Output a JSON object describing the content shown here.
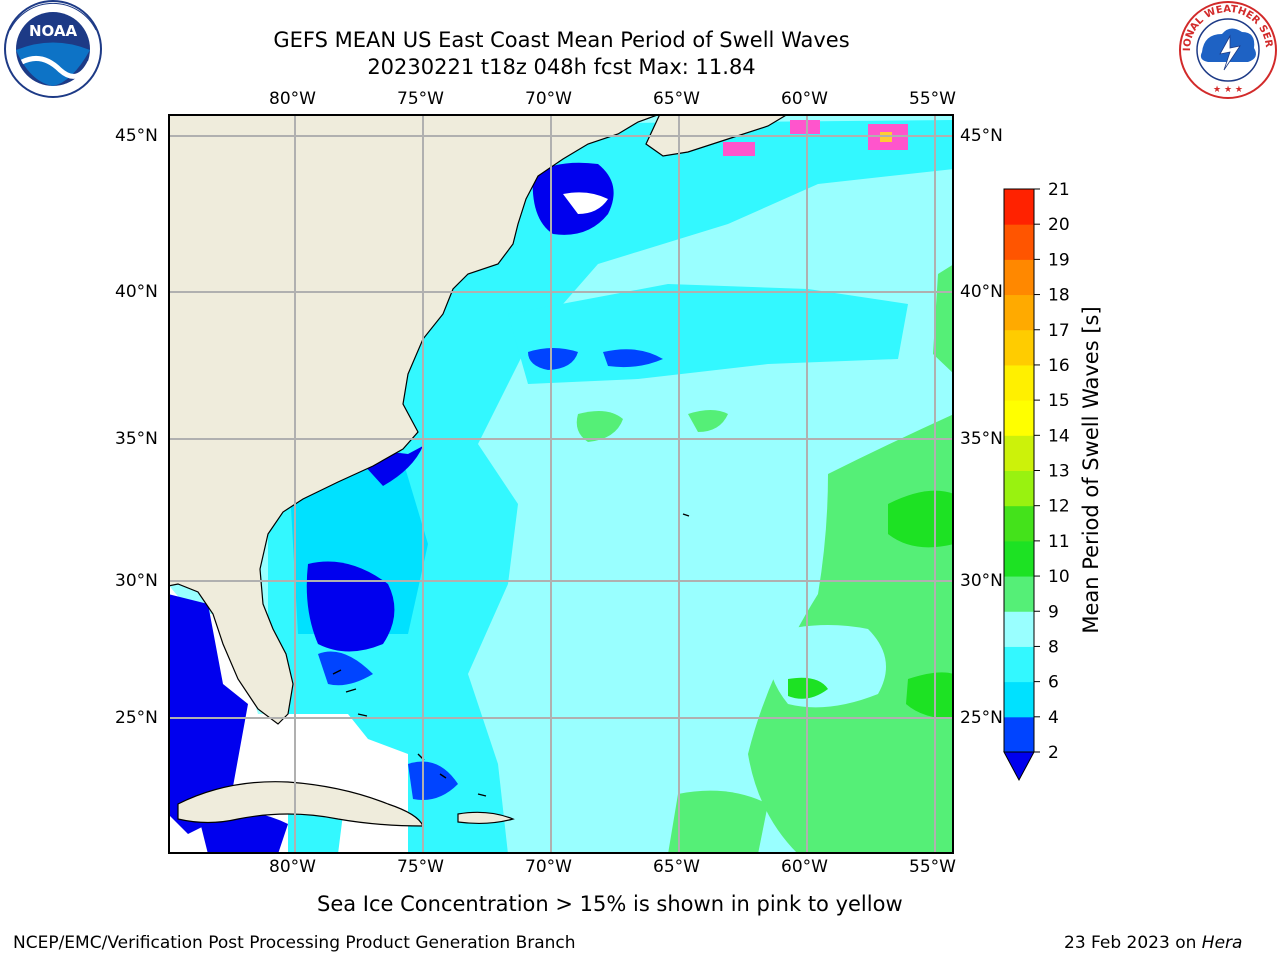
{
  "header": {
    "title_line1": "GEFS MEAN US East Coast Mean Period of Swell Waves",
    "title_line2": "20230221 t18z 048h fcst   Max: 11.84"
  },
  "logos": {
    "left": {
      "name": "noaa-logo",
      "text": "NOAA"
    },
    "right": {
      "name": "national-weather-service-logo",
      "text": "NATIONAL WEATHER SERVICE"
    }
  },
  "map": {
    "lon_labels": [
      "80°W",
      "75°W",
      "70°W",
      "65°W",
      "60°W",
      "55°W"
    ],
    "lat_labels": [
      "45°N",
      "40°N",
      "35°N",
      "30°N",
      "25°N"
    ],
    "colors": {
      "land": "#efecdc",
      "no_data": "#ffffff",
      "grid": "#b0b0b0",
      "coast": "#000000"
    }
  },
  "colorbar": {
    "label": "Mean Period of Swell Waves [s]",
    "ticks": [
      "2",
      "4",
      "6",
      "8",
      "9",
      "10",
      "11",
      "12",
      "13",
      "14",
      "15",
      "16",
      "17",
      "18",
      "19",
      "20",
      "21"
    ],
    "colors": [
      "#0044ff",
      "#00e1ff",
      "#33f8ff",
      "#99ffff",
      "#55ef77",
      "#1de223",
      "#44e21b",
      "#99f210",
      "#ccf20a",
      "#ffff00",
      "#fff000",
      "#ffcc00",
      "#ffaa00",
      "#ff8800",
      "#ff5500",
      "#ff2200",
      "#ff0000"
    ],
    "under_color": "#0000ee"
  },
  "caption": "Sea Ice Concentration > 15% is shown in pink to yellow",
  "footer": {
    "left": "NCEP/EMC/Verification Post Processing Product Generation Branch",
    "right_date": "23 Feb 2023 on ",
    "right_host": "Hera"
  }
}
